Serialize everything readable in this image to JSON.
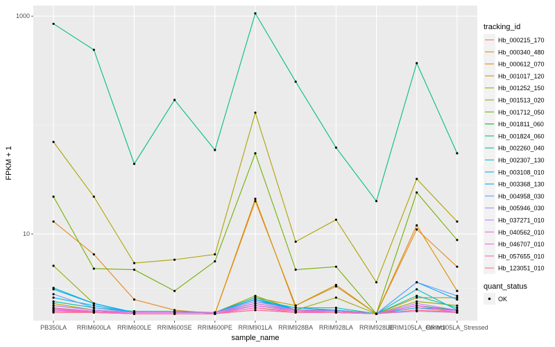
{
  "chart_data": {
    "type": "line",
    "xlabel": "sample_name",
    "ylabel": "FPKM + 1",
    "y_scale": "log10",
    "ylim": [
      1.6,
      1250
    ],
    "y_ticks": [
      {
        "value": 10,
        "label": "10"
      },
      {
        "value": 1000,
        "label": "1000"
      }
    ],
    "grid": true,
    "categories": [
      "PB350LA",
      "RRIM600LA",
      "RRIM600LE",
      "RRIM600SE",
      "RRIM600PE",
      "RRIM901LA",
      "RRIM928BA",
      "RRIM928LA",
      "RRIM928LE",
      "RRIM105LA_Control",
      "RRIM105LA_Stressed"
    ],
    "legend": [
      {
        "title": "tracking_id",
        "position": "right"
      },
      {
        "title": "quant_status",
        "entries": [
          {
            "label": "OK",
            "symbol": "point"
          }
        ]
      }
    ],
    "series": [
      {
        "name": "Hb_000215_170",
        "color": "#F8766D",
        "values": [
          2.05,
          1.95,
          1.85,
          1.85,
          1.85,
          2.1,
          1.95,
          1.95,
          1.85,
          2.1,
          1.9
        ]
      },
      {
        "name": "Hb_000340_480",
        "color": "#E7861B",
        "values": [
          13,
          6.5,
          2.5,
          2.0,
          1.85,
          20,
          2.2,
          3.3,
          1.85,
          11,
          5.0
        ]
      },
      {
        "name": "Hb_000612_070",
        "color": "#DB8E00",
        "values": [
          2.1,
          1.9,
          1.85,
          1.85,
          1.85,
          21,
          2.1,
          2.0,
          1.85,
          12,
          3.0
        ]
      },
      {
        "name": "Hb_001017_120",
        "color": "#C49A00",
        "values": [
          2.3,
          2.0,
          1.9,
          1.9,
          1.9,
          2.6,
          2.2,
          3.4,
          1.85,
          2.6,
          2.6
        ]
      },
      {
        "name": "Hb_001252_150",
        "color": "#AEA200",
        "values": [
          70,
          22,
          5.4,
          5.8,
          6.5,
          130,
          8.5,
          13.5,
          3.6,
          32,
          13
        ]
      },
      {
        "name": "Hb_001513_020",
        "color": "#96A900",
        "values": [
          5.1,
          2.3,
          1.9,
          1.9,
          1.9,
          2.7,
          2.0,
          2.6,
          1.85,
          2.4,
          2.2
        ]
      },
      {
        "name": "Hb_001712_050",
        "color": "#72B000",
        "values": [
          22,
          4.8,
          4.7,
          3.0,
          5.6,
          55,
          4.7,
          5.0,
          1.85,
          24,
          8.8
        ]
      },
      {
        "name": "Hb_001811_060",
        "color": "#00BA38",
        "values": [
          2.2,
          2.0,
          1.9,
          1.9,
          1.9,
          2.3,
          2.0,
          2.0,
          1.85,
          2.2,
          2.0
        ]
      },
      {
        "name": "Hb_001824_060",
        "color": "#00BF7D",
        "values": [
          850,
          490,
          44,
          170,
          59,
          1060,
          250,
          62,
          20,
          370,
          55
        ]
      },
      {
        "name": "Hb_002260_040",
        "color": "#00C1A3",
        "values": [
          2.4,
          2.1,
          1.95,
          1.95,
          1.9,
          2.5,
          2.1,
          2.1,
          1.85,
          2.7,
          2.1
        ]
      },
      {
        "name": "Hb_002307_130",
        "color": "#00BFC4",
        "values": [
          3.2,
          2.3,
          1.9,
          1.9,
          1.9,
          2.6,
          2.0,
          2.0,
          1.85,
          3.1,
          2.0
        ]
      },
      {
        "name": "Hb_003108_010",
        "color": "#00B4EF",
        "values": [
          2.6,
          2.2,
          1.9,
          1.9,
          1.9,
          2.4,
          2.1,
          2.0,
          1.85,
          2.1,
          2.0
        ]
      },
      {
        "name": "Hb_003368_130",
        "color": "#00A9FF",
        "values": [
          3.1,
          2.3,
          1.9,
          1.9,
          1.9,
          2.5,
          2.0,
          2.0,
          1.85,
          3.6,
          2.5
        ]
      },
      {
        "name": "Hb_004958_030",
        "color": "#619CFF",
        "values": [
          2.8,
          2.1,
          1.9,
          1.9,
          1.9,
          2.2,
          2.0,
          2.0,
          1.85,
          3.6,
          2.7
        ]
      },
      {
        "name": "Hb_005946_030",
        "color": "#9F8CFF",
        "values": [
          2.0,
          1.9,
          1.85,
          1.85,
          1.85,
          2.0,
          1.9,
          1.9,
          1.85,
          1.95,
          1.9
        ]
      },
      {
        "name": "Hb_037271_010",
        "color": "#C77CFF",
        "values": [
          2.2,
          2.0,
          1.9,
          1.9,
          1.9,
          2.4,
          2.0,
          1.95,
          1.85,
          2.3,
          2.0
        ]
      },
      {
        "name": "Hb_040562_010",
        "color": "#E36FDB",
        "values": [
          2.1,
          1.95,
          1.9,
          1.9,
          1.9,
          2.3,
          2.0,
          1.95,
          1.85,
          2.2,
          1.95
        ]
      },
      {
        "name": "Hb_046707_010",
        "color": "#F564E3",
        "values": [
          2.0,
          1.95,
          1.85,
          1.85,
          1.85,
          2.2,
          1.95,
          1.9,
          1.85,
          2.2,
          1.9
        ]
      },
      {
        "name": "Hb_057655_010",
        "color": "#FF64B0",
        "values": [
          1.95,
          1.9,
          1.85,
          1.85,
          1.85,
          2.1,
          1.9,
          1.9,
          1.85,
          2.0,
          1.9
        ]
      },
      {
        "name": "Hb_123051_010",
        "color": "#FF6C91",
        "values": [
          1.9,
          1.9,
          1.85,
          1.85,
          1.85,
          2.0,
          1.9,
          1.9,
          1.85,
          2.0,
          1.9
        ]
      }
    ]
  }
}
